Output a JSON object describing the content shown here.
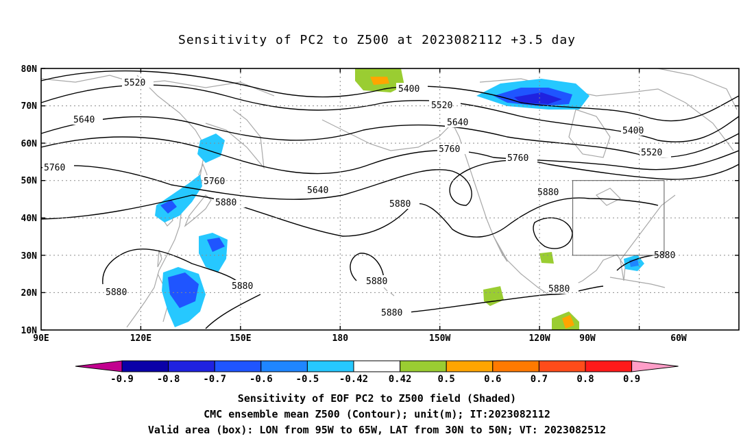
{
  "title": "Sensitivity of PC2 to Z500 at 2023082112 +3.5 day",
  "map": {
    "lon_range_deg_east": [
      90,
      300
    ],
    "lat_range": [
      10,
      80
    ],
    "lat_ticks": [
      "80N",
      "70N",
      "60N",
      "50N",
      "40N",
      "30N",
      "20N",
      "10N"
    ],
    "lon_ticks": [
      "90E",
      "120E",
      "150E",
      "180",
      "150W",
      "120W",
      "90W",
      "60W"
    ],
    "valid_box": {
      "lon": [
        "95W",
        "65W"
      ],
      "lat": [
        "30N",
        "50N"
      ]
    },
    "contour_labels": [
      "5520",
      "5400",
      "5520",
      "5640",
      "5640",
      "5760",
      "5760",
      "5760",
      "5760",
      "5640",
      "5880",
      "5880",
      "5880",
      "5880",
      "5880",
      "5880",
      "5880",
      "5880",
      "5880",
      "5400",
      "5520"
    ]
  },
  "colorbar": {
    "labels": [
      "-0.9",
      "-0.8",
      "-0.7",
      "-0.6",
      "-0.5",
      "-0.42",
      "0.42",
      "0.5",
      "0.6",
      "0.7",
      "0.8",
      "0.9"
    ],
    "colors": [
      "#c2008f",
      "#0a00a8",
      "#1f22e0",
      "#1f55ff",
      "#1f86ff",
      "#26c8ff",
      "#ffffff",
      "#9acd32",
      "#ffa500",
      "#ff7a00",
      "#ff4c1a",
      "#ff1a1a",
      "#ff9ec8"
    ]
  },
  "captions": {
    "line1": "Sensitivity of EOF PC2 to Z500 field (Shaded)",
    "line2": "CMC ensemble mean Z500 (Contour); unit(m); IT:2023082112",
    "line3": "Valid area (box): LON from 95W to 65W, LAT from 30N to 50N; VT: 2023082512"
  }
}
